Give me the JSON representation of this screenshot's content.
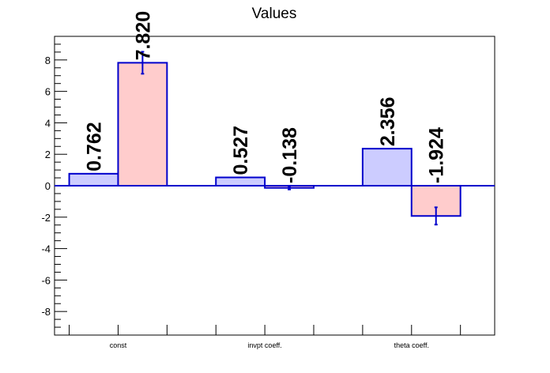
{
  "chart_data": {
    "type": "bar",
    "title": "Values",
    "xlabel": "",
    "ylabel": "",
    "categories": [
      "const",
      "invpt coeff.",
      "theta coeff."
    ],
    "ylim": [
      -9.5,
      9.5
    ],
    "yticks": [
      -8,
      -6,
      -4,
      -2,
      0,
      2,
      4,
      6,
      8
    ],
    "grid": false,
    "legend": "none",
    "series": [
      {
        "values": [
          0.762,
          0.527,
          2.356
        ],
        "labels": [
          "0.762",
          "0.527",
          "2.356"
        ],
        "errors": [
          0,
          0,
          0
        ],
        "color": "#ccccff",
        "edge_color": "#0000cc"
      },
      {
        "values": [
          7.82,
          -0.138,
          -1.924
        ],
        "labels": [
          "7.820",
          "-0.138",
          "-1.924"
        ],
        "errors": [
          0.7,
          0.1,
          0.55
        ],
        "color": "#ffcccc",
        "edge_color": "#0000cc"
      }
    ],
    "zero_line_color": "#0000cc",
    "error_bar_color": "#0000cc"
  }
}
